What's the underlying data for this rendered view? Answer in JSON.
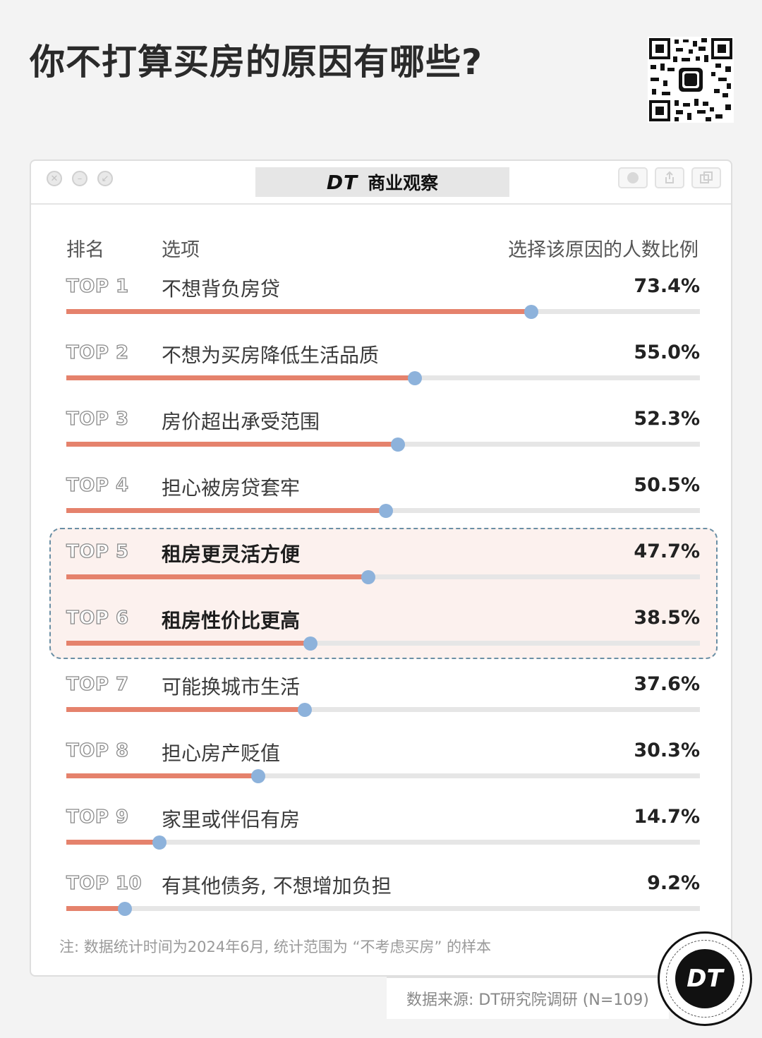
{
  "title": "你不打算买房的原因有哪些?",
  "window": {
    "brand_logo": "DT",
    "brand_name": "商业观察"
  },
  "colors": {
    "bar_fill": "#e5826c",
    "bar_track": "#e6e6e6",
    "marker": "#8db2db",
    "highlight_bg": "#fcf1ee",
    "highlight_border": "#6a8fa5"
  },
  "chart_data": {
    "type": "bar",
    "orientation": "horizontal",
    "columns": [
      "排名",
      "选项",
      "选择该原因的人数比例"
    ],
    "xlim": [
      0,
      100
    ],
    "unit": "%",
    "rows": [
      {
        "rank": "TOP 1",
        "label": "不想背负房贷",
        "value": 73.4,
        "value_label": "73.4%",
        "highlight": false
      },
      {
        "rank": "TOP 2",
        "label": "不想为买房降低生活品质",
        "value": 55.0,
        "value_label": "55.0%",
        "highlight": false
      },
      {
        "rank": "TOP 3",
        "label": "房价超出承受范围",
        "value": 52.3,
        "value_label": "52.3%",
        "highlight": false
      },
      {
        "rank": "TOP 4",
        "label": "担心被房贷套牢",
        "value": 50.5,
        "value_label": "50.5%",
        "highlight": false
      },
      {
        "rank": "TOP 5",
        "label": "租房更灵活方便",
        "value": 47.7,
        "value_label": "47.7%",
        "highlight": true
      },
      {
        "rank": "TOP 6",
        "label": "租房性价比更高",
        "value": 38.5,
        "value_label": "38.5%",
        "highlight": true
      },
      {
        "rank": "TOP 7",
        "label": "可能换城市生活",
        "value": 37.6,
        "value_label": "37.6%",
        "highlight": false
      },
      {
        "rank": "TOP 8",
        "label": "担心房产贬值",
        "value": 30.3,
        "value_label": "30.3%",
        "highlight": false
      },
      {
        "rank": "TOP 9",
        "label": "家里或伴侣有房",
        "value": 14.7,
        "value_label": "14.7%",
        "highlight": false
      },
      {
        "rank": "TOP 10",
        "label": "有其他债务, 不想增加负担",
        "value": 9.2,
        "value_label": "9.2%",
        "highlight": false
      }
    ]
  },
  "note": "注: 数据统计时间为2024年6月, 统计范围为 “不考虑买房” 的样本",
  "source": "数据来源: DT研究院调研 (N=109)",
  "badge": "DT"
}
